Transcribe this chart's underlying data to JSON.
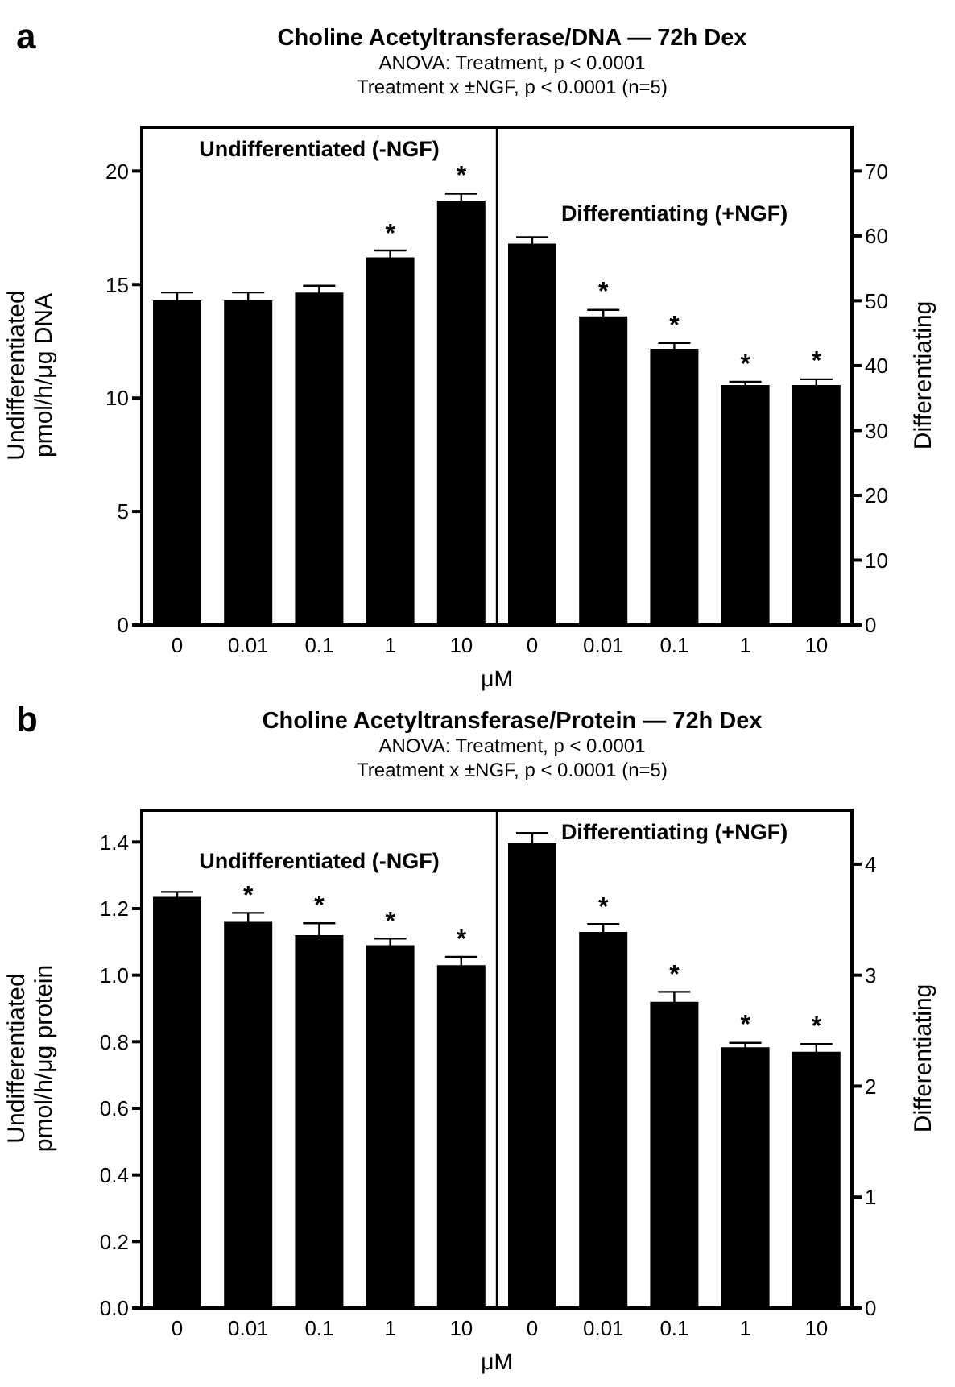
{
  "chart_data": [
    {
      "type": "bar",
      "title": "Choline Acetyltransferase/DNA — 72h Dex",
      "subtitle": "ANOVA:  Treatment, p < 0.0001\nTreatment x ±NGF, p < 0.0001 (n=5)",
      "annotations": [
        "a"
      ],
      "xlabel": "μM",
      "ylabel": "Undifferentiated\npmol/h/μg DNA",
      "y2label": "Differentiating",
      "categories": [
        "0",
        "0.01",
        "0.1",
        "1",
        "10",
        "0",
        "0.01",
        "0.1",
        "1",
        "10"
      ],
      "series": [
        {
          "name": "Undifferentiated (-NGF)",
          "color": "#000000",
          "values": [
            14.3,
            14.3,
            14.65,
            16.2,
            18.7,
            null,
            null,
            null,
            null,
            null
          ],
          "errors": [
            0.35,
            0.35,
            0.3,
            0.3,
            0.3,
            null,
            null,
            null,
            null,
            null
          ],
          "value_labels": [
            null,
            null,
            null,
            "*",
            "*",
            null,
            null,
            null,
            null,
            null
          ]
        },
        {
          "name": "Differentiating (+NGF)",
          "color": "#000000",
          "axis": "y2",
          "values": [
            null,
            null,
            null,
            null,
            null,
            58.8,
            47.6,
            42.6,
            37.0,
            37.0
          ],
          "errors": [
            null,
            null,
            null,
            null,
            null,
            1.0,
            1.0,
            0.9,
            0.5,
            0.9
          ],
          "value_labels": [
            null,
            null,
            null,
            null,
            null,
            null,
            "*",
            "*",
            "*",
            "*"
          ]
        }
      ],
      "ylim": [
        0,
        22
      ],
      "yticks": [
        0,
        5,
        10,
        15,
        20
      ],
      "y2lim": [
        0,
        77
      ],
      "y2ticks": [
        0,
        10,
        20,
        30,
        40,
        50,
        60,
        70
      ]
    },
    {
      "type": "bar",
      "title": "Choline Acetyltransferase/Protein — 72h Dex",
      "subtitle": "ANOVA:  Treatment, p < 0.0001\nTreatment x ±NGF, p < 0.0001 (n=5)",
      "annotations": [
        "b"
      ],
      "xlabel": "μM",
      "ylabel": "Undifferentiated\npmol/h/μg protein",
      "y2label": "Differentiating",
      "categories": [
        "0",
        "0.01",
        "0.1",
        "1",
        "10",
        "0",
        "0.01",
        "0.1",
        "1",
        "10"
      ],
      "series": [
        {
          "name": "Undifferentiated (-NGF)",
          "color": "#000000",
          "values": [
            1.235,
            1.16,
            1.12,
            1.09,
            1.03,
            null,
            null,
            null,
            null,
            null
          ],
          "errors": [
            0.015,
            0.027,
            0.036,
            0.02,
            0.025,
            null,
            null,
            null,
            null,
            null
          ],
          "value_labels": [
            null,
            "*",
            "*",
            "*",
            "*",
            null,
            null,
            null,
            null,
            null
          ]
        },
        {
          "name": "Differentiating (+NGF)",
          "color": "#000000",
          "axis": "y2",
          "values": [
            null,
            null,
            null,
            null,
            null,
            4.19,
            3.39,
            2.76,
            2.35,
            2.31
          ],
          "errors": [
            null,
            null,
            null,
            null,
            null,
            0.09,
            0.07,
            0.09,
            0.04,
            0.07
          ],
          "value_labels": [
            null,
            null,
            null,
            null,
            null,
            null,
            "*",
            "*",
            "*",
            "*"
          ]
        }
      ],
      "ylim": [
        0,
        1.5
      ],
      "yticks": [
        {
          "value": 0,
          "label": "0.0"
        },
        0.2,
        0.4,
        0.6,
        0.8,
        {
          "value": 1,
          "label": "1.0"
        },
        1.2,
        1.4
      ],
      "y2lim": [
        0,
        4.5
      ],
      "y2ticks": [
        0,
        1,
        2,
        3,
        4
      ]
    }
  ]
}
